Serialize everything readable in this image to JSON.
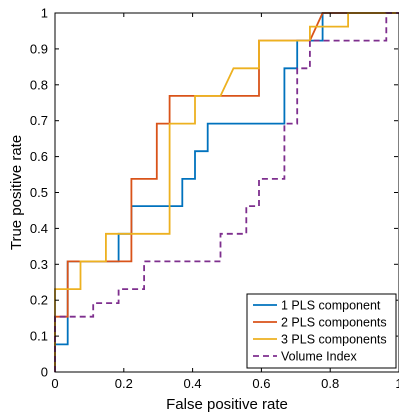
{
  "chart_data": {
    "type": "line",
    "xlabel": "False positive rate",
    "ylabel": "True positive rate",
    "xlim": [
      0,
      1
    ],
    "ylim": [
      0,
      1
    ],
    "x_ticks": [
      "0",
      "0.2",
      "0.4",
      "0.6",
      "0.8",
      "1"
    ],
    "y_ticks": [
      "0",
      "0.1",
      "0.2",
      "0.3",
      "0.4",
      "0.5",
      "0.6",
      "0.7",
      "0.8",
      "0.9",
      "1"
    ],
    "grid": false,
    "legend_position": "bottom-right",
    "series": [
      {
        "name": "1 PLS component",
        "color": "#0072BD",
        "dash": "solid",
        "points": [
          [
            0,
            0
          ],
          [
            0,
            0.077
          ],
          [
            0.037,
            0.077
          ],
          [
            0.037,
            0.308
          ],
          [
            0.185,
            0.308
          ],
          [
            0.185,
            0.385
          ],
          [
            0.222,
            0.385
          ],
          [
            0.222,
            0.462
          ],
          [
            0.37,
            0.462
          ],
          [
            0.37,
            0.538
          ],
          [
            0.407,
            0.538
          ],
          [
            0.407,
            0.615
          ],
          [
            0.444,
            0.615
          ],
          [
            0.444,
            0.692
          ],
          [
            0.667,
            0.692
          ],
          [
            0.667,
            0.846
          ],
          [
            0.704,
            0.846
          ],
          [
            0.704,
            0.923
          ],
          [
            0.778,
            0.923
          ],
          [
            0.778,
            1
          ],
          [
            1,
            1
          ]
        ]
      },
      {
        "name": "2 PLS components",
        "color": "#D95319",
        "dash": "solid",
        "points": [
          [
            0,
            0
          ],
          [
            0,
            0.154
          ],
          [
            0.037,
            0.154
          ],
          [
            0.037,
            0.308
          ],
          [
            0.222,
            0.308
          ],
          [
            0.222,
            0.538
          ],
          [
            0.296,
            0.538
          ],
          [
            0.296,
            0.692
          ],
          [
            0.333,
            0.692
          ],
          [
            0.333,
            0.769
          ],
          [
            0.593,
            0.769
          ],
          [
            0.593,
            0.923
          ],
          [
            0.741,
            0.923
          ],
          [
            0.778,
            1
          ],
          [
            1,
            1
          ]
        ]
      },
      {
        "name": "3 PLS components",
        "color": "#EDB120",
        "dash": "solid",
        "points": [
          [
            0,
            0
          ],
          [
            0,
            0.231
          ],
          [
            0.074,
            0.231
          ],
          [
            0.074,
            0.308
          ],
          [
            0.148,
            0.308
          ],
          [
            0.148,
            0.385
          ],
          [
            0.333,
            0.385
          ],
          [
            0.333,
            0.692
          ],
          [
            0.407,
            0.692
          ],
          [
            0.407,
            0.769
          ],
          [
            0.481,
            0.769
          ],
          [
            0.519,
            0.846
          ],
          [
            0.593,
            0.846
          ],
          [
            0.593,
            0.923
          ],
          [
            0.741,
            0.923
          ],
          [
            0.741,
            0.962
          ],
          [
            0.852,
            0.962
          ],
          [
            0.852,
            1
          ],
          [
            1,
            1
          ]
        ]
      },
      {
        "name": "Volume Index",
        "color": "#7E2F8E",
        "dash": "dashed",
        "points": [
          [
            0,
            0
          ],
          [
            0,
            0.154
          ],
          [
            0.111,
            0.154
          ],
          [
            0.111,
            0.154
          ],
          [
            0.111,
            0.192
          ],
          [
            0.185,
            0.192
          ],
          [
            0.185,
            0.231
          ],
          [
            0.259,
            0.231
          ],
          [
            0.259,
            0.308
          ],
          [
            0.481,
            0.308
          ],
          [
            0.481,
            0.385
          ],
          [
            0.556,
            0.385
          ],
          [
            0.556,
            0.462
          ],
          [
            0.593,
            0.462
          ],
          [
            0.593,
            0.538
          ],
          [
            0.667,
            0.538
          ],
          [
            0.667,
            0.692
          ],
          [
            0.704,
            0.692
          ],
          [
            0.704,
            0.846
          ],
          [
            0.741,
            0.846
          ],
          [
            0.741,
            0.923
          ],
          [
            0.963,
            0.923
          ],
          [
            0.963,
            1
          ],
          [
            1,
            1
          ]
        ]
      }
    ]
  }
}
